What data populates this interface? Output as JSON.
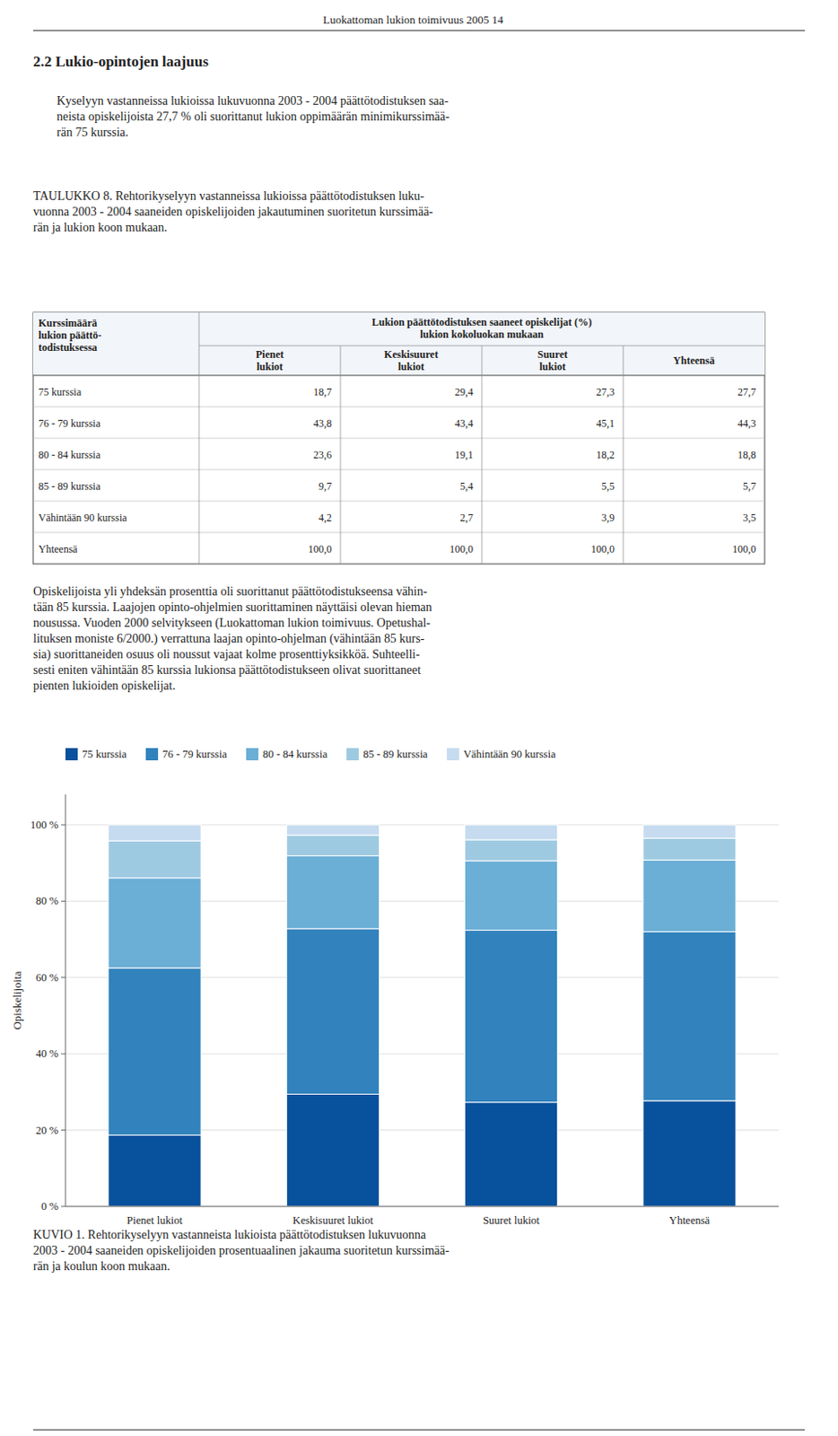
{
  "page_header": "Luokattoman lukion toimivuus 2005  14",
  "section_title": "2.2  Lukio-opintojen laajuus",
  "paragraph1": [
    "Kyselyyn vastanneissa lukioissa lukuvuonna 2003 - 2004 päättötodistuksen saa-",
    "neista opiskelijoista 27,7 % oli suorittanut lukion oppimäärän minimikurssimää-",
    "rän 75 kurssia."
  ],
  "table_title": [
    "TAULUKKO 8. Rehtorikyselyyn vastanneissa lukioissa päättötodistuksen luku-",
    "vuonna 2003 - 2004 saaneiden opiskelijoiden jakautuminen suoritetun kurssimää-",
    "rän ja lukion koon mukaan."
  ],
  "table": {
    "corner": [
      "Kurssimäärä",
      "lukion päättö-",
      "todistuksessa"
    ],
    "span_header": [
      "Lukion päättötodistuksen saaneet opiskelijat (%)",
      "lukion kokoluokan mukaan"
    ],
    "columns": [
      [
        "Pienet",
        "lukiot"
      ],
      [
        "Keskisuuret",
        "lukiot"
      ],
      [
        "Suuret",
        "lukiot"
      ],
      [
        "Yhteensä"
      ]
    ],
    "rows": [
      [
        "75 kurssia",
        "18,7",
        "29,4",
        "27,3",
        "27,7"
      ],
      [
        "76 - 79 kurssia",
        "43,8",
        "43,4",
        "45,1",
        "44,3"
      ],
      [
        "80 - 84 kurssia",
        "23,6",
        "19,1",
        "18,2",
        "18,8"
      ],
      [
        "85 - 89 kurssia",
        "9,7",
        "5,4",
        "5,5",
        "5,7"
      ],
      [
        "Vähintään 90 kurssia",
        "4,2",
        "2,7",
        "3,9",
        "3,5"
      ],
      [
        "Yhteensä",
        "100,0",
        "100,0",
        "100,0",
        "100,0"
      ]
    ]
  },
  "paragraph2": [
    "Opiskelijoista yli yhdeksän prosenttia oli suorittanut päättötodistukseensa vähin-",
    "tään 85 kurssia. Laajojen opinto-ohjelmien suorittaminen näyttäisi olevan hieman",
    "nousussa. Vuoden 2000 selvitykseen (Luokattoman lukion toimivuus. Opetushal-",
    "lituksen moniste 6/2000.) verrattuna laajan opinto-ohjelman (vähintään 85 kurs-",
    "sia) suorittaneiden osuus oli noussut vajaat kolme prosenttiyksikköä. Suhteelli-",
    "sesti eniten vähintään 85 kurssia lukionsa päättötodistukseen olivat suorittaneet",
    "pienten lukioiden opiskelijat."
  ],
  "chart_data": {
    "type": "bar",
    "stacked": true,
    "categories": [
      "Pienet lukiot",
      "Keskisuuret lukiot",
      "Suuret lukiot",
      "Yhteensä"
    ],
    "series": [
      {
        "name": "75 kurssia",
        "color": "#08519c",
        "values": [
          18.7,
          29.4,
          27.3,
          27.7
        ]
      },
      {
        "name": "76 - 79 kurssia",
        "color": "#3182bd",
        "values": [
          43.8,
          43.4,
          45.1,
          44.3
        ]
      },
      {
        "name": "80 - 84 kurssia",
        "color": "#6baed6",
        "values": [
          23.6,
          19.1,
          18.2,
          18.8
        ]
      },
      {
        "name": "85 - 89 kurssia",
        "color": "#9ecae1",
        "values": [
          9.7,
          5.4,
          5.5,
          5.7
        ]
      },
      {
        "name": "Vähintään 90 kurssia",
        "color": "#c6dbef",
        "values": [
          4.2,
          2.7,
          3.9,
          3.5
        ]
      }
    ],
    "ylabel": "Opiskelijoita",
    "ylim": [
      0,
      108
    ],
    "yticks": [
      {
        "value": 0,
        "label": "0 %"
      },
      {
        "value": 20,
        "label": "20 %"
      },
      {
        "value": 40,
        "label": "40 %"
      },
      {
        "value": 60,
        "label": "60 %"
      },
      {
        "value": 80,
        "label": "80 %"
      },
      {
        "value": 100,
        "label": "100 %"
      }
    ],
    "grid": true,
    "legend": "top"
  },
  "figure_caption": [
    "KUVIO 1. Rehtorikyselyyn vastanneista lukioista päättötodistuksen lukuvuonna",
    "2003 - 2004 saaneiden opiskelijoiden prosentuaalinen jakauma suoritetun kurssimää-",
    "rän ja koulun koon mukaan."
  ]
}
